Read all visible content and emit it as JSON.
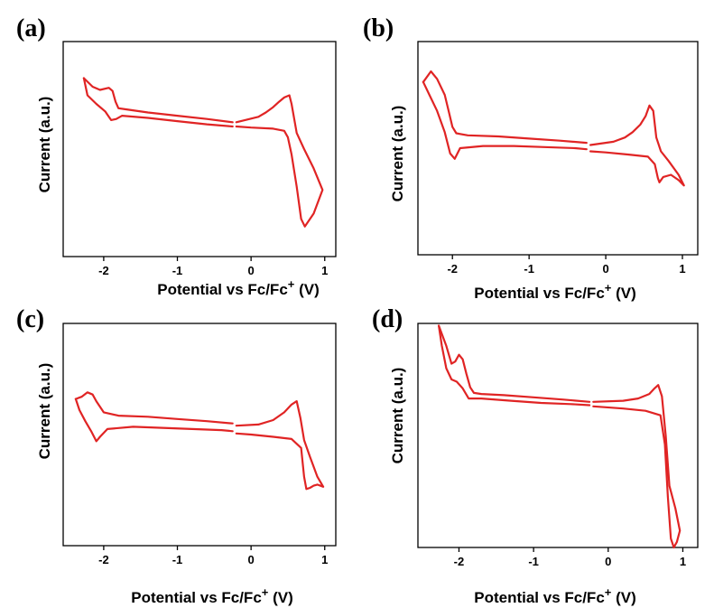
{
  "figure": {
    "curve_color": "#e02424"
  },
  "chart_data": [
    {
      "type": "line",
      "panel_label": "(a)",
      "xlabel": "Potential vs Fc/Fc",
      "xlabel_sup": "+",
      "xlabel_unit": " (V)",
      "ylabel": "Current (a.u.)",
      "xlim": [
        -2.55,
        1.15
      ],
      "ylim": [
        -1.0,
        1.0
      ],
      "xticks": [
        -2,
        -1,
        0,
        1
      ],
      "grid": false,
      "series": [
        {
          "x": [
            -0.25,
            -0.6,
            -1.0,
            -1.4,
            -1.7,
            -1.8,
            -1.84,
            -1.88,
            -1.93,
            -2.05,
            -2.15,
            -2.27
          ],
          "y": [
            0.25,
            0.28,
            0.31,
            0.34,
            0.37,
            0.38,
            0.44,
            0.54,
            0.57,
            0.55,
            0.58,
            0.66
          ]
        },
        {
          "x": [
            -2.27,
            -2.22,
            -2.1,
            -1.98,
            -1.9,
            -1.83,
            -1.75,
            -1.4,
            -1.0,
            -0.6,
            -0.25
          ],
          "y": [
            0.66,
            0.5,
            0.42,
            0.35,
            0.27,
            0.28,
            0.31,
            0.29,
            0.26,
            0.23,
            0.21
          ]
        },
        {
          "x": [
            -0.2,
            0.1,
            0.2,
            0.3,
            0.38,
            0.45,
            0.52,
            0.55,
            0.62,
            0.72,
            0.85,
            0.97,
            0.85,
            0.73,
            0.68,
            0.62,
            0.55,
            0.5,
            0.45,
            0.3,
            0.0,
            -0.2
          ],
          "y": [
            0.25,
            0.3,
            0.34,
            0.39,
            0.44,
            0.48,
            0.5,
            0.42,
            0.15,
            0.0,
            -0.18,
            -0.38,
            -0.6,
            -0.72,
            -0.65,
            -0.35,
            -0.05,
            0.11,
            0.17,
            0.19,
            0.2,
            0.21
          ]
        }
      ]
    },
    {
      "type": "line",
      "panel_label": "(b)",
      "xlabel": "Potential vs Fc/Fc",
      "xlabel_sup": "+",
      "xlabel_unit": " (V)",
      "ylabel": "Current (a.u.)",
      "xlim": [
        -2.45,
        1.2
      ],
      "ylim": [
        -1.0,
        1.0
      ],
      "xticks": [
        -2,
        -1,
        0,
        1
      ],
      "grid": false,
      "series": [
        {
          "x": [
            -0.25,
            -0.6,
            -1.0,
            -1.4,
            -1.8,
            -1.95,
            -2.0,
            -2.05,
            -2.1,
            -2.2,
            -2.28,
            -2.38
          ],
          "y": [
            0.05,
            0.07,
            0.09,
            0.11,
            0.12,
            0.14,
            0.2,
            0.35,
            0.5,
            0.65,
            0.72,
            0.62
          ]
        },
        {
          "x": [
            -2.38,
            -2.3,
            -2.2,
            -2.1,
            -2.03,
            -1.97,
            -1.9,
            -1.6,
            -1.2,
            -0.8,
            -0.4,
            -0.25
          ],
          "y": [
            0.62,
            0.5,
            0.35,
            0.15,
            -0.05,
            -0.1,
            0.0,
            0.02,
            0.02,
            0.01,
            0.0,
            -0.01
          ]
        },
        {
          "x": [
            -0.2,
            0.1,
            0.25,
            0.35,
            0.45,
            0.52,
            0.57,
            0.62,
            0.66,
            0.72,
            0.82,
            0.95,
            1.02,
            0.95,
            0.85,
            0.75,
            0.7,
            0.68,
            0.64,
            0.55,
            0.3,
            0.0,
            -0.2
          ],
          "y": [
            0.03,
            0.06,
            0.1,
            0.15,
            0.22,
            0.3,
            0.4,
            0.35,
            0.1,
            -0.03,
            -0.12,
            -0.25,
            -0.35,
            -0.3,
            -0.25,
            -0.27,
            -0.32,
            -0.28,
            -0.15,
            -0.08,
            -0.06,
            -0.04,
            -0.03
          ]
        }
      ]
    },
    {
      "type": "line",
      "panel_label": "(c)",
      "xlabel": "Potential vs Fc/Fc",
      "xlabel_sup": "+",
      "xlabel_unit": " (V)",
      "ylabel": "Current (a.u.)",
      "xlim": [
        -2.55,
        1.15
      ],
      "ylim": [
        -1.0,
        1.0
      ],
      "xticks": [
        -2,
        -1,
        0,
        1
      ],
      "grid": false,
      "series": [
        {
          "x": [
            -0.25,
            -0.6,
            -1.0,
            -1.4,
            -1.8,
            -2.0,
            -2.05,
            -2.1,
            -2.15,
            -2.22,
            -2.3,
            -2.38
          ],
          "y": [
            0.1,
            0.12,
            0.14,
            0.16,
            0.17,
            0.2,
            0.25,
            0.3,
            0.36,
            0.38,
            0.34,
            0.32
          ]
        },
        {
          "x": [
            -2.38,
            -2.33,
            -2.25,
            -2.17,
            -2.1,
            -2.05,
            -1.95,
            -1.6,
            -1.2,
            -0.8,
            -0.4,
            -0.25
          ],
          "y": [
            0.32,
            0.22,
            0.12,
            0.03,
            -0.06,
            -0.02,
            0.05,
            0.07,
            0.06,
            0.05,
            0.04,
            0.03
          ]
        },
        {
          "x": [
            -0.2,
            0.1,
            0.3,
            0.45,
            0.55,
            0.62,
            0.67,
            0.72,
            0.8,
            0.9,
            0.98,
            0.9,
            0.85,
            0.8,
            0.75,
            0.72,
            0.68,
            0.55,
            0.3,
            0.0,
            -0.2
          ],
          "y": [
            0.08,
            0.09,
            0.13,
            0.2,
            0.27,
            0.3,
            0.15,
            -0.05,
            -0.2,
            -0.38,
            -0.47,
            -0.45,
            -0.46,
            -0.48,
            -0.49,
            -0.38,
            -0.12,
            -0.04,
            -0.02,
            0.0,
            0.01
          ]
        }
      ]
    },
    {
      "type": "line",
      "panel_label": "(d)",
      "xlabel": "Potential vs Fc/Fc",
      "xlabel_sup": "+",
      "xlabel_unit": " (V)",
      "ylabel": "Current (a.u.)",
      "xlim": [
        -2.55,
        1.2
      ],
      "ylim": [
        -1.0,
        1.0
      ],
      "xticks": [
        -2,
        -1,
        0,
        1
      ],
      "grid": false,
      "series": [
        {
          "x": [
            -0.25,
            -0.6,
            -1.0,
            -1.4,
            -1.7,
            -1.8,
            -1.85,
            -1.9,
            -1.95,
            -2.0,
            -2.05,
            -2.1,
            -2.17,
            -2.27
          ],
          "y": [
            0.3,
            0.32,
            0.34,
            0.36,
            0.37,
            0.38,
            0.43,
            0.55,
            0.68,
            0.72,
            0.66,
            0.64,
            0.8,
            0.98
          ]
        },
        {
          "x": [
            -2.27,
            -2.23,
            -2.17,
            -2.1,
            -2.03,
            -1.95,
            -1.87,
            -1.7,
            -1.3,
            -0.9,
            -0.5,
            -0.25
          ],
          "y": [
            0.98,
            0.8,
            0.6,
            0.5,
            0.48,
            0.42,
            0.33,
            0.33,
            0.31,
            0.29,
            0.28,
            0.27
          ]
        },
        {
          "x": [
            -0.2,
            0.2,
            0.4,
            0.55,
            0.62,
            0.67,
            0.72,
            0.77,
            0.82,
            0.9,
            0.96,
            0.92,
            0.88,
            0.84,
            0.8,
            0.76,
            0.7,
            0.5,
            0.2,
            -0.2
          ],
          "y": [
            0.3,
            0.31,
            0.33,
            0.37,
            0.42,
            0.45,
            0.35,
            0.0,
            -0.45,
            -0.65,
            -0.85,
            -0.95,
            -1.0,
            -0.92,
            -0.55,
            -0.08,
            0.18,
            0.22,
            0.24,
            0.26
          ]
        }
      ]
    }
  ]
}
